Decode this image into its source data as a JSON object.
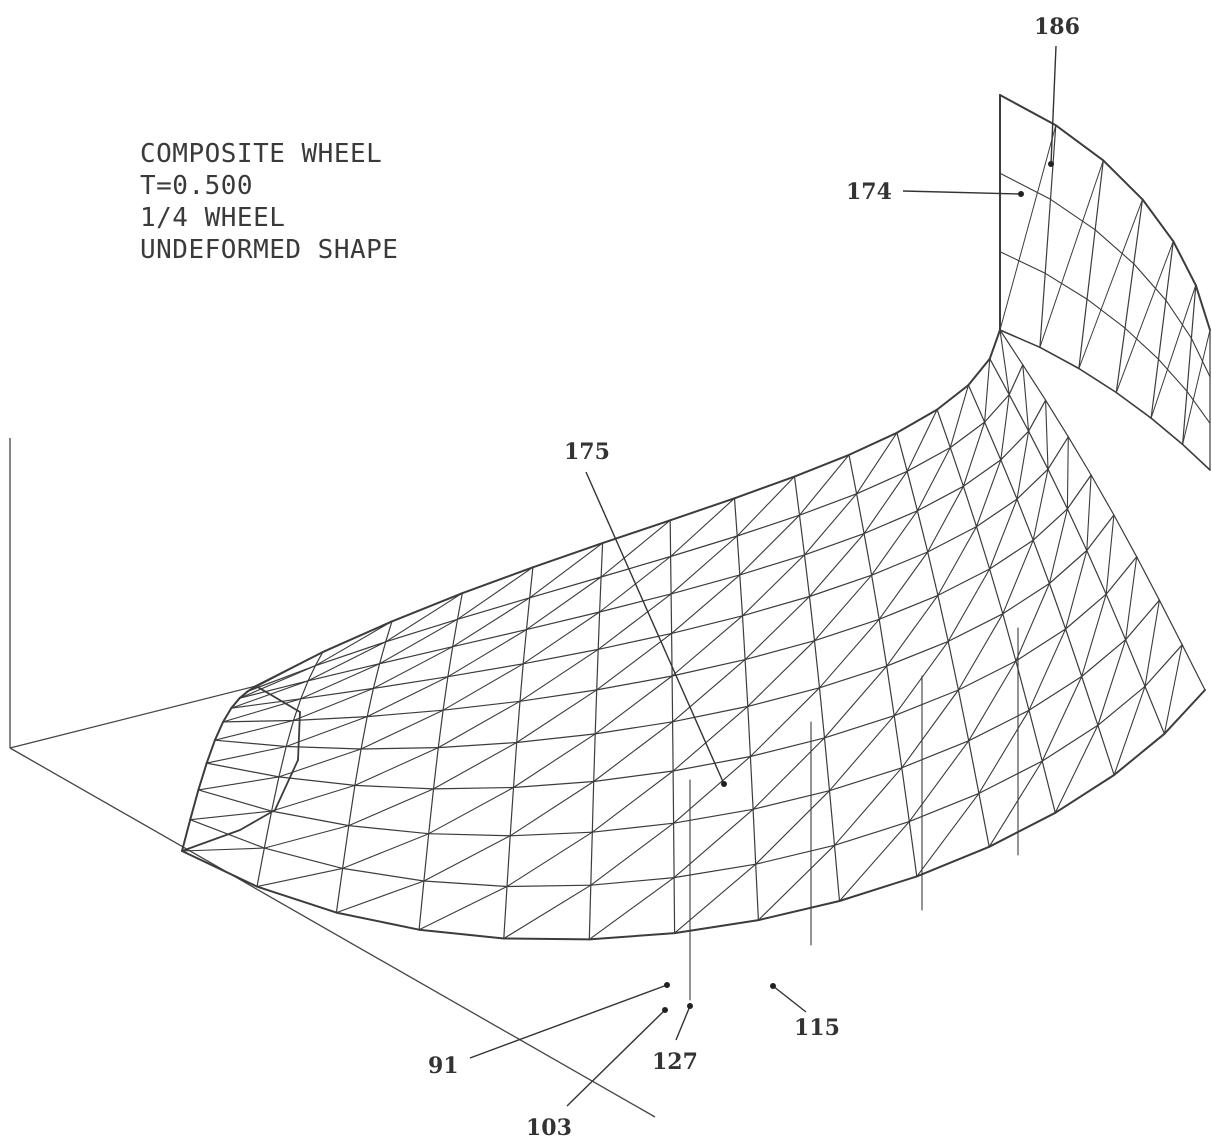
{
  "plot_title": {
    "lines": [
      "COMPOSITE WHEEL",
      "T=0.500",
      "1/4 WHEEL",
      "UNDEFORMED SHAPE"
    ]
  },
  "node_labels": [
    "186",
    "174",
    "175",
    "115",
    "127",
    "91",
    "103"
  ],
  "colors": {
    "ink": "#3c3c3c",
    "paper": "#ffffff"
  }
}
